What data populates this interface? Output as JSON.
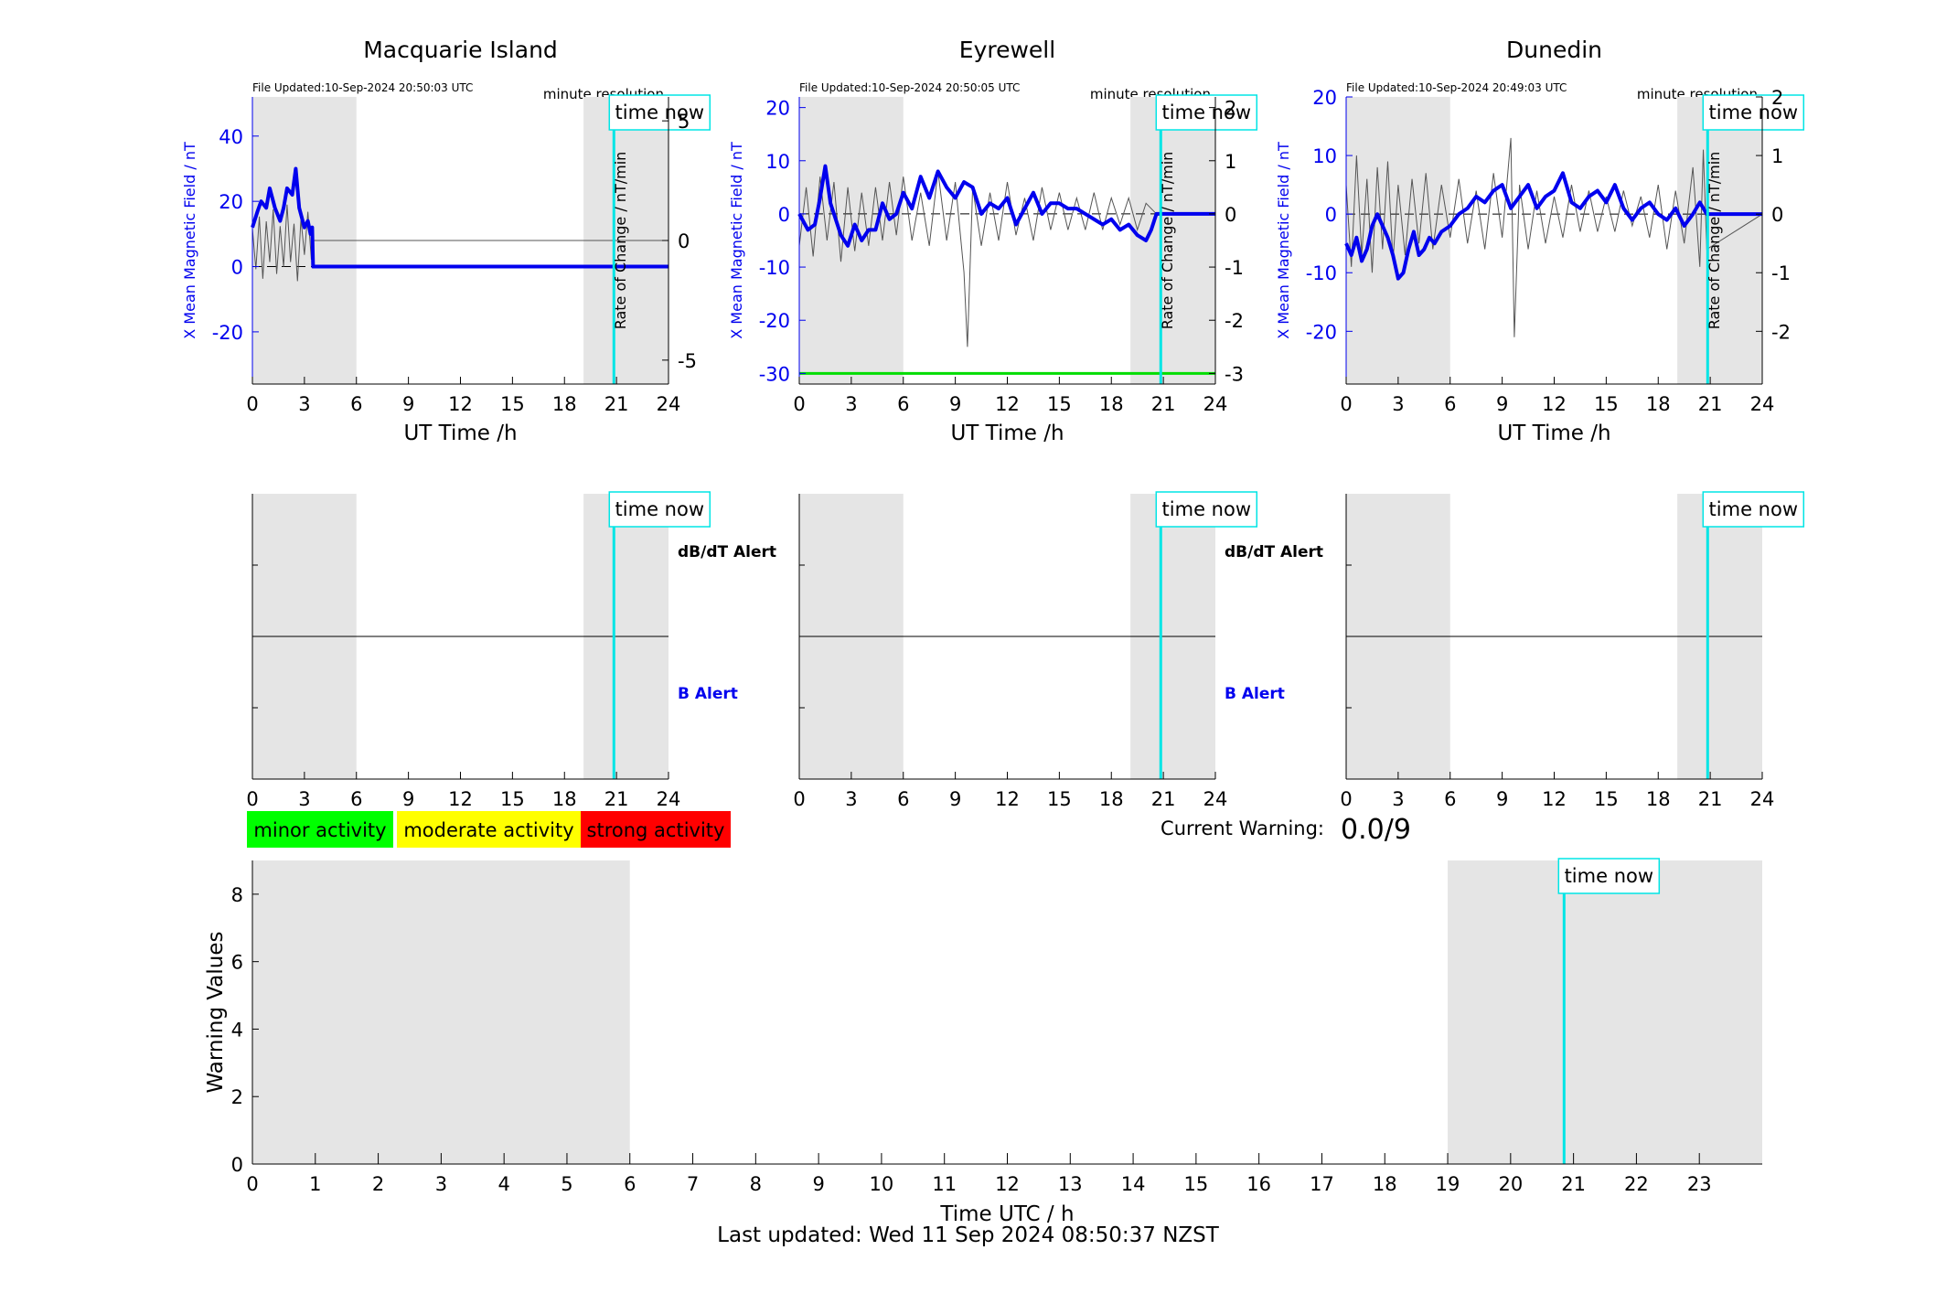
{
  "colors": {
    "shade": "#e5e5e5",
    "field": "#0000ee",
    "rate": "#555555",
    "timenow": "#00e5e5",
    "threshold": "#00dd00",
    "minor": "#00ff00",
    "moderate": "#ffff00",
    "strong": "#ff0000"
  },
  "axis_labels": {
    "ut_time": "UT Time /h",
    "y_left": "X Mean Magnetic Field / nT",
    "y_right": "Rate of Change / nT/min",
    "warning_y": "Warning Values",
    "warning_x": "Time UTC / h"
  },
  "annotations": {
    "time_now": "time now",
    "resolution": "minute resolution",
    "dbdt_alert": "dB/dT Alert",
    "b_alert": "B Alert"
  },
  "legend": {
    "minor": "minor activity",
    "moderate": "moderate activity",
    "strong": "strong activity"
  },
  "current_warning": {
    "label": "Current Warning:",
    "value": "0.0/9"
  },
  "footer": "Last updated: Wed 11 Sep 2024 08:50:37 NZST",
  "chart_data": [
    {
      "type": "line",
      "station": "Macquarie Island",
      "file_updated": "File Updated:10-Sep-2024 20:50:03 UTC",
      "xlim": [
        0,
        24
      ],
      "xticks": [
        0,
        3,
        6,
        9,
        12,
        15,
        18,
        21,
        24
      ],
      "ylim_left": [
        -36,
        52
      ],
      "yticks_left": [
        -20,
        0,
        20,
        40
      ],
      "ylim_right": [
        -6,
        6
      ],
      "yticks_right": [
        -5,
        0,
        5
      ],
      "shaded_hours": [
        [
          0,
          6
        ],
        [
          19.1,
          24
        ]
      ],
      "time_now": 20.85,
      "series": [
        {
          "axis": "left",
          "x": [
            0,
            0.3,
            0.5,
            0.8,
            1.0,
            1.3,
            1.6,
            1.8,
            2.0,
            2.3,
            2.5,
            2.7,
            3.0,
            3.2,
            3.35,
            3.45,
            3.5,
            24
          ],
          "y": [
            12,
            17,
            20,
            18,
            24,
            18,
            14,
            18,
            24,
            22,
            30,
            18,
            12,
            14,
            10,
            12,
            0,
            0
          ]
        },
        {
          "axis": "right",
          "x": [
            0,
            0.2,
            0.4,
            0.6,
            0.8,
            1.0,
            1.2,
            1.4,
            1.6,
            1.8,
            2.0,
            2.2,
            2.4,
            2.6,
            2.8,
            3.0,
            3.2,
            3.4,
            3.5,
            24
          ],
          "y": [
            0.5,
            -1.2,
            1.0,
            -1.6,
            0.8,
            -0.9,
            1.3,
            -1.4,
            0.6,
            -1.1,
            1.5,
            -0.9,
            0.7,
            -1.7,
            0.9,
            -0.6,
            1.2,
            -0.8,
            0,
            0
          ]
        }
      ]
    },
    {
      "type": "line",
      "station": "Eyrewell",
      "file_updated": "File Updated:10-Sep-2024 20:50:05 UTC",
      "xlim": [
        0,
        24
      ],
      "xticks": [
        0,
        3,
        6,
        9,
        12,
        15,
        18,
        21,
        24
      ],
      "ylim_left": [
        -32,
        22
      ],
      "yticks_left": [
        -30,
        -20,
        -10,
        0,
        10,
        20
      ],
      "ylim_right": [
        -3.2,
        2.2
      ],
      "yticks_right": [
        -3,
        -2,
        -1,
        0,
        1,
        2
      ],
      "shaded_hours": [
        [
          0,
          6
        ],
        [
          19.1,
          24
        ]
      ],
      "time_now": 20.85,
      "threshold_left": -30,
      "series": [
        {
          "axis": "left",
          "x": [
            0,
            0.5,
            0.9,
            1.2,
            1.5,
            1.8,
            2.1,
            2.4,
            2.8,
            3.2,
            3.6,
            4.0,
            4.4,
            4.8,
            5.2,
            5.6,
            6.0,
            6.5,
            7.0,
            7.5,
            8.0,
            8.5,
            9.0,
            9.5,
            10.0,
            10.5,
            11.0,
            11.5,
            12.0,
            12.5,
            13.0,
            13.5,
            14.0,
            14.5,
            15.0,
            15.5,
            16.0,
            16.5,
            17.0,
            17.5,
            18.0,
            18.5,
            19.0,
            19.5,
            20.0,
            20.3,
            20.6,
            24
          ],
          "y": [
            0,
            -3,
            -2,
            3,
            9,
            2,
            -1,
            -4,
            -6,
            -2,
            -5,
            -3,
            -3,
            2,
            -1,
            0,
            4,
            1,
            7,
            3,
            8,
            5,
            3,
            6,
            5,
            0,
            2,
            1,
            3,
            -2,
            1,
            4,
            0,
            2,
            2,
            1,
            1,
            0,
            -1,
            -2,
            -1,
            -3,
            -2,
            -4,
            -5,
            -3,
            0,
            0
          ]
        },
        {
          "axis": "right",
          "x": [
            0,
            0.4,
            0.8,
            1.2,
            1.6,
            2.0,
            2.4,
            2.8,
            3.2,
            3.6,
            4.0,
            4.4,
            4.8,
            5.2,
            5.6,
            6.0,
            6.5,
            7.0,
            7.5,
            8.0,
            8.5,
            9.0,
            9.5,
            9.7,
            10.0,
            10.5,
            11.0,
            11.5,
            12.0,
            12.5,
            13.0,
            13.5,
            14.0,
            14.5,
            15.0,
            15.5,
            16.0,
            16.5,
            17.0,
            17.5,
            18.0,
            18.5,
            19.0,
            19.5,
            20.0,
            20.6,
            24
          ],
          "y": [
            -0.6,
            0.5,
            -0.8,
            0.7,
            -0.5,
            0.6,
            -0.9,
            0.5,
            -0.7,
            0.4,
            -0.6,
            0.5,
            -0.5,
            0.6,
            -0.4,
            0.7,
            -0.5,
            0.4,
            -0.6,
            0.8,
            -0.5,
            0.6,
            -1.1,
            -2.5,
            0.5,
            -0.6,
            0.4,
            -0.5,
            0.6,
            -0.4,
            0.3,
            -0.5,
            0.5,
            -0.3,
            0.4,
            -0.3,
            0.3,
            -0.3,
            0.4,
            -0.3,
            0.3,
            -0.2,
            0.3,
            -0.3,
            0.2,
            0,
            0
          ]
        }
      ]
    },
    {
      "type": "line",
      "station": "Dunedin",
      "file_updated": "File Updated:10-Sep-2024 20:49:03 UTC",
      "xlim": [
        0,
        24
      ],
      "xticks": [
        0,
        3,
        6,
        9,
        12,
        15,
        18,
        21,
        24
      ],
      "ylim_left": [
        -29,
        20
      ],
      "yticks_left": [
        -20,
        -10,
        0,
        10,
        20
      ],
      "ylim_right": [
        -2.9,
        2.0
      ],
      "yticks_right": [
        -2,
        -1,
        0,
        1,
        2
      ],
      "shaded_hours": [
        [
          0,
          6
        ],
        [
          19.1,
          24
        ]
      ],
      "time_now": 20.85,
      "series": [
        {
          "axis": "left",
          "x": [
            0,
            0.3,
            0.6,
            0.9,
            1.2,
            1.5,
            1.8,
            2.1,
            2.4,
            2.7,
            3.0,
            3.3,
            3.6,
            3.9,
            4.2,
            4.5,
            4.8,
            5.1,
            5.5,
            6.0,
            6.5,
            7.0,
            7.5,
            8.0,
            8.5,
            9.0,
            9.5,
            10.0,
            10.5,
            11.0,
            11.5,
            12.0,
            12.5,
            13.0,
            13.5,
            14.0,
            14.5,
            15.0,
            15.5,
            16.0,
            16.5,
            17.0,
            17.5,
            18.0,
            18.5,
            19.0,
            19.5,
            20.0,
            20.4,
            20.6,
            20.8,
            24
          ],
          "y": [
            -5,
            -7,
            -4,
            -8,
            -6,
            -2,
            0,
            -2,
            -4,
            -7,
            -11,
            -10,
            -6,
            -3,
            -7,
            -6,
            -4,
            -5,
            -3,
            -2,
            0,
            1,
            3,
            2,
            4,
            5,
            1,
            3,
            5,
            1,
            3,
            4,
            7,
            2,
            1,
            3,
            4,
            2,
            5,
            1,
            -1,
            1,
            2,
            0,
            -1,
            1,
            -2,
            0,
            2,
            1,
            0,
            0
          ]
        },
        {
          "axis": "right",
          "x": [
            0,
            0.3,
            0.6,
            0.9,
            1.2,
            1.5,
            1.8,
            2.1,
            2.4,
            2.7,
            3.0,
            3.4,
            3.8,
            4.2,
            4.6,
            5.0,
            5.5,
            6.0,
            6.5,
            7.0,
            7.5,
            8.0,
            8.5,
            9.0,
            9.5,
            9.7,
            10.0,
            10.5,
            11.0,
            11.5,
            12.0,
            12.5,
            13.0,
            13.5,
            14.0,
            14.5,
            15.0,
            15.5,
            16.0,
            16.5,
            17.0,
            17.5,
            18.0,
            18.5,
            19.0,
            19.5,
            20.0,
            20.4,
            20.6,
            20.8,
            24
          ],
          "y": [
            0.5,
            -0.9,
            1.0,
            -0.7,
            0.6,
            -1.0,
            0.8,
            -0.6,
            0.9,
            -0.8,
            0.5,
            -0.7,
            0.6,
            -0.5,
            0.7,
            -0.6,
            0.5,
            -0.4,
            0.6,
            -0.5,
            0.4,
            -0.6,
            0.7,
            -0.4,
            1.3,
            -2.1,
            0.5,
            -0.6,
            0.4,
            -0.5,
            0.3,
            -0.4,
            0.5,
            -0.3,
            0.4,
            -0.3,
            0.3,
            -0.3,
            0.4,
            -0.2,
            0.3,
            -0.4,
            0.5,
            -0.6,
            0.4,
            -0.5,
            0.8,
            -0.9,
            1.1,
            -0.6,
            0
          ]
        }
      ]
    },
    {
      "type": "bar",
      "panel": "alert",
      "station": "Macquarie Island",
      "xlim": [
        0,
        24
      ],
      "xticks": [
        0,
        3,
        6,
        9,
        12,
        15,
        18,
        21,
        24
      ],
      "shaded_hours": [
        [
          0,
          6
        ],
        [
          19.1,
          24
        ]
      ],
      "time_now": 20.85,
      "values": []
    },
    {
      "type": "bar",
      "panel": "alert",
      "station": "Eyrewell",
      "xlim": [
        0,
        24
      ],
      "xticks": [
        0,
        3,
        6,
        9,
        12,
        15,
        18,
        21,
        24
      ],
      "shaded_hours": [
        [
          0,
          6
        ],
        [
          19.1,
          24
        ]
      ],
      "time_now": 20.85,
      "values": []
    },
    {
      "type": "bar",
      "panel": "alert",
      "station": "Dunedin",
      "xlim": [
        0,
        24
      ],
      "xticks": [
        0,
        3,
        6,
        9,
        12,
        15,
        18,
        21,
        24
      ],
      "shaded_hours": [
        [
          0,
          6
        ],
        [
          19.1,
          24
        ]
      ],
      "time_now": 20.85,
      "values": []
    },
    {
      "type": "bar",
      "panel": "warning",
      "xlim": [
        0,
        24
      ],
      "xticks": [
        0,
        1,
        2,
        3,
        4,
        5,
        6,
        7,
        8,
        9,
        10,
        11,
        12,
        13,
        14,
        15,
        16,
        17,
        18,
        19,
        20,
        21,
        22,
        23
      ],
      "ylim": [
        0,
        9
      ],
      "yticks": [
        0,
        2,
        4,
        6,
        8
      ],
      "shaded_hours": [
        [
          0,
          6
        ],
        [
          19,
          24
        ]
      ],
      "time_now": 20.85,
      "values": []
    }
  ]
}
